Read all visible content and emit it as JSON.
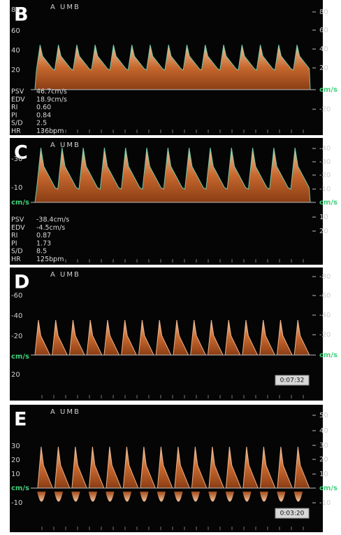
{
  "panels": [
    {
      "label": "B",
      "header": "A  UMB",
      "left_axis": [
        "80",
        "60",
        "40",
        "20"
      ],
      "right_axis": [
        "80",
        "60",
        "40",
        "20",
        "cm/s",
        "-20"
      ],
      "measurements": [
        [
          "PSV",
          "46.7cm/s"
        ],
        [
          "EDV",
          "18.9cm/s"
        ],
        [
          "RI",
          "0.60"
        ],
        [
          "PI",
          "0.84"
        ],
        [
          "S/D",
          "2.5"
        ],
        [
          "HR",
          "136bpm"
        ]
      ]
    },
    {
      "label": "C",
      "header": "A  UMB",
      "left_axis": [
        "-30",
        "-10",
        "cm/s"
      ],
      "right_axis": [
        "-40",
        "-30",
        "-20",
        "-10",
        "cm/s",
        "10",
        "20"
      ],
      "measurements": [
        [
          "PSV",
          "-38.4cm/s"
        ],
        [
          "EDV",
          "-4.5cm/s"
        ],
        [
          "RI",
          "0.87"
        ],
        [
          "PI",
          "1.73"
        ],
        [
          "S/D",
          "8.5"
        ],
        [
          "HR",
          "125bpm"
        ]
      ]
    },
    {
      "label": "D",
      "header": "A  UMB",
      "left_axis": [
        "-60",
        "-40",
        "-20",
        "cm/s",
        "20"
      ],
      "right_axis": [
        "-80",
        "-60",
        "-40",
        "-20",
        "cm/s"
      ],
      "timer": "0:07:32"
    },
    {
      "label": "E",
      "header": "A  UMB",
      "left_axis": [
        "30",
        "20",
        "10",
        "cm/s",
        "-10"
      ],
      "right_axis": [
        "50",
        "40",
        "30",
        "20",
        "10",
        "cm/s",
        "-10"
      ],
      "timer": "0:03:20"
    }
  ]
}
